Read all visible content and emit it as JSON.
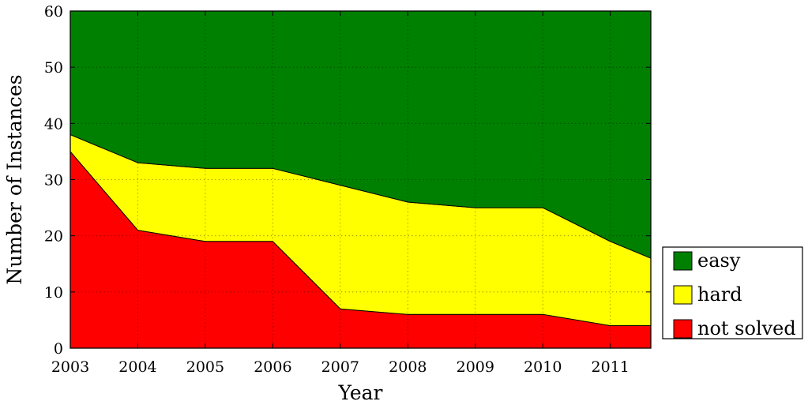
{
  "chart_data": {
    "type": "area",
    "x": [
      2003,
      2004,
      2005,
      2006,
      2007,
      2008,
      2009,
      2010,
      2011,
      2011.6
    ],
    "xticks": [
      "2003",
      "2004",
      "2005",
      "2006",
      "2007",
      "2008",
      "2009",
      "2010",
      "2011"
    ],
    "xlim": [
      2003,
      2011.6
    ],
    "ylim": [
      0,
      60
    ],
    "yticks": [
      "0",
      "10",
      "20",
      "30",
      "40",
      "50",
      "60"
    ],
    "xlabel": "Year",
    "ylabel": "Number of Instances",
    "stacked": true,
    "grid": true,
    "legend_position": "right",
    "series": [
      {
        "name": "not solved",
        "color": "#ff0000",
        "values": [
          35,
          21,
          19,
          19,
          7,
          6,
          6,
          6,
          4,
          4
        ]
      },
      {
        "name": "hard",
        "color": "#ffff00",
        "values": [
          3,
          12,
          13,
          13,
          22,
          20,
          19,
          19,
          15,
          12
        ]
      },
      {
        "name": "easy",
        "color": "#008000",
        "values": [
          22,
          27,
          28,
          28,
          31,
          34,
          35,
          35,
          41,
          44
        ]
      }
    ],
    "legend_order": [
      "easy",
      "hard",
      "not solved"
    ]
  }
}
